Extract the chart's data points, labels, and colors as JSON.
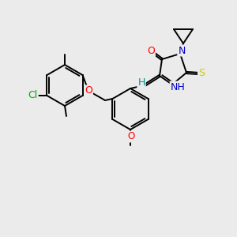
{
  "background_color": "#ebebeb",
  "bond_color": "#000000",
  "atom_colors": {
    "O": "#ff0000",
    "N": "#0000cd",
    "S": "#cccc00",
    "Cl": "#00aa00",
    "H_teal": "#009090",
    "C": "#000000"
  },
  "figsize": [
    3.0,
    3.0
  ],
  "dpi": 100,
  "lw": 1.4,
  "ring_lw": 1.4
}
